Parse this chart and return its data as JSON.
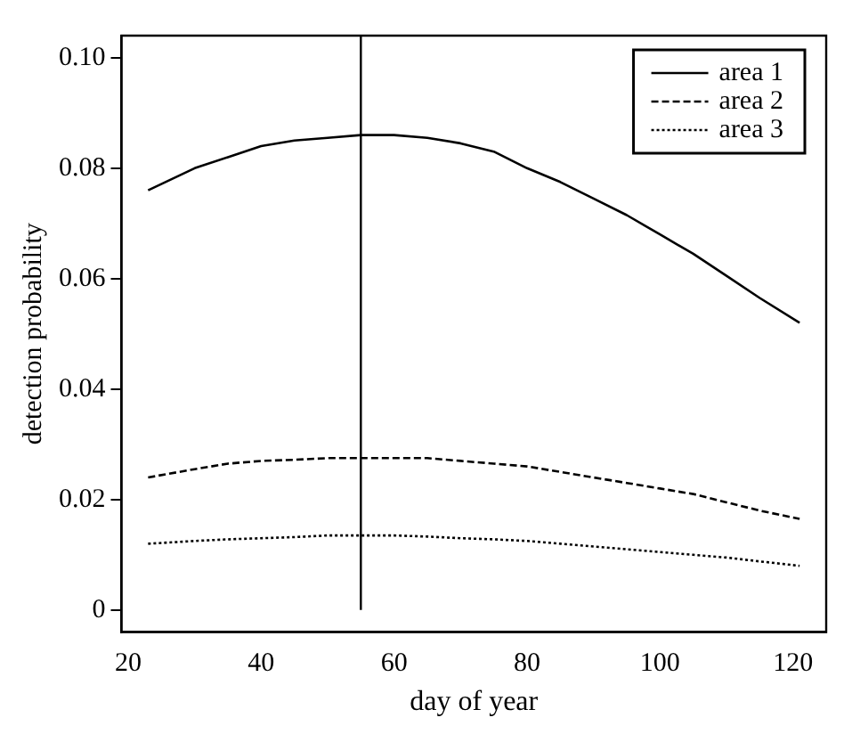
{
  "chart_data": {
    "type": "line",
    "xlabel": "day of year",
    "ylabel": "detection probability",
    "x": [
      23,
      30,
      35,
      40,
      45,
      50,
      55,
      60,
      65,
      70,
      75,
      80,
      85,
      90,
      95,
      100,
      105,
      110,
      115,
      121
    ],
    "series": [
      {
        "name": "area 1",
        "color": "#000000",
        "line_style": "solid",
        "values": [
          0.076,
          0.08,
          0.082,
          0.084,
          0.085,
          0.0855,
          0.086,
          0.086,
          0.0855,
          0.0845,
          0.083,
          0.08,
          0.0775,
          0.0745,
          0.0715,
          0.068,
          0.0645,
          0.0605,
          0.0565,
          0.052
        ]
      },
      {
        "name": "area 2",
        "color": "#000000",
        "line_style": "dashed",
        "values": [
          0.024,
          0.0255,
          0.0265,
          0.027,
          0.0272,
          0.0275,
          0.0275,
          0.0275,
          0.0275,
          0.027,
          0.0265,
          0.026,
          0.025,
          0.024,
          0.023,
          0.022,
          0.021,
          0.0195,
          0.018,
          0.0165
        ]
      },
      {
        "name": "area 3",
        "color": "#000000",
        "line_style": "dotted",
        "values": [
          0.012,
          0.0125,
          0.0128,
          0.013,
          0.0132,
          0.0135,
          0.0135,
          0.0135,
          0.0133,
          0.013,
          0.0128,
          0.0125,
          0.012,
          0.0115,
          0.011,
          0.0105,
          0.01,
          0.0095,
          0.0088,
          0.008
        ]
      }
    ],
    "xlim": [
      19,
      125
    ],
    "xticks": [
      20,
      40,
      60,
      80,
      100,
      120
    ],
    "ylim": [
      -0.004,
      0.104
    ],
    "yticks": [
      0,
      0.02,
      0.04,
      0.06,
      0.08,
      {
        "value": 0.1,
        "label": "0.10"
      }
    ],
    "ref_lines": [
      {
        "axis": "x",
        "value": 55,
        "color": "#000000"
      }
    ],
    "legend": "top right",
    "grid": false,
    "marker": "none"
  }
}
